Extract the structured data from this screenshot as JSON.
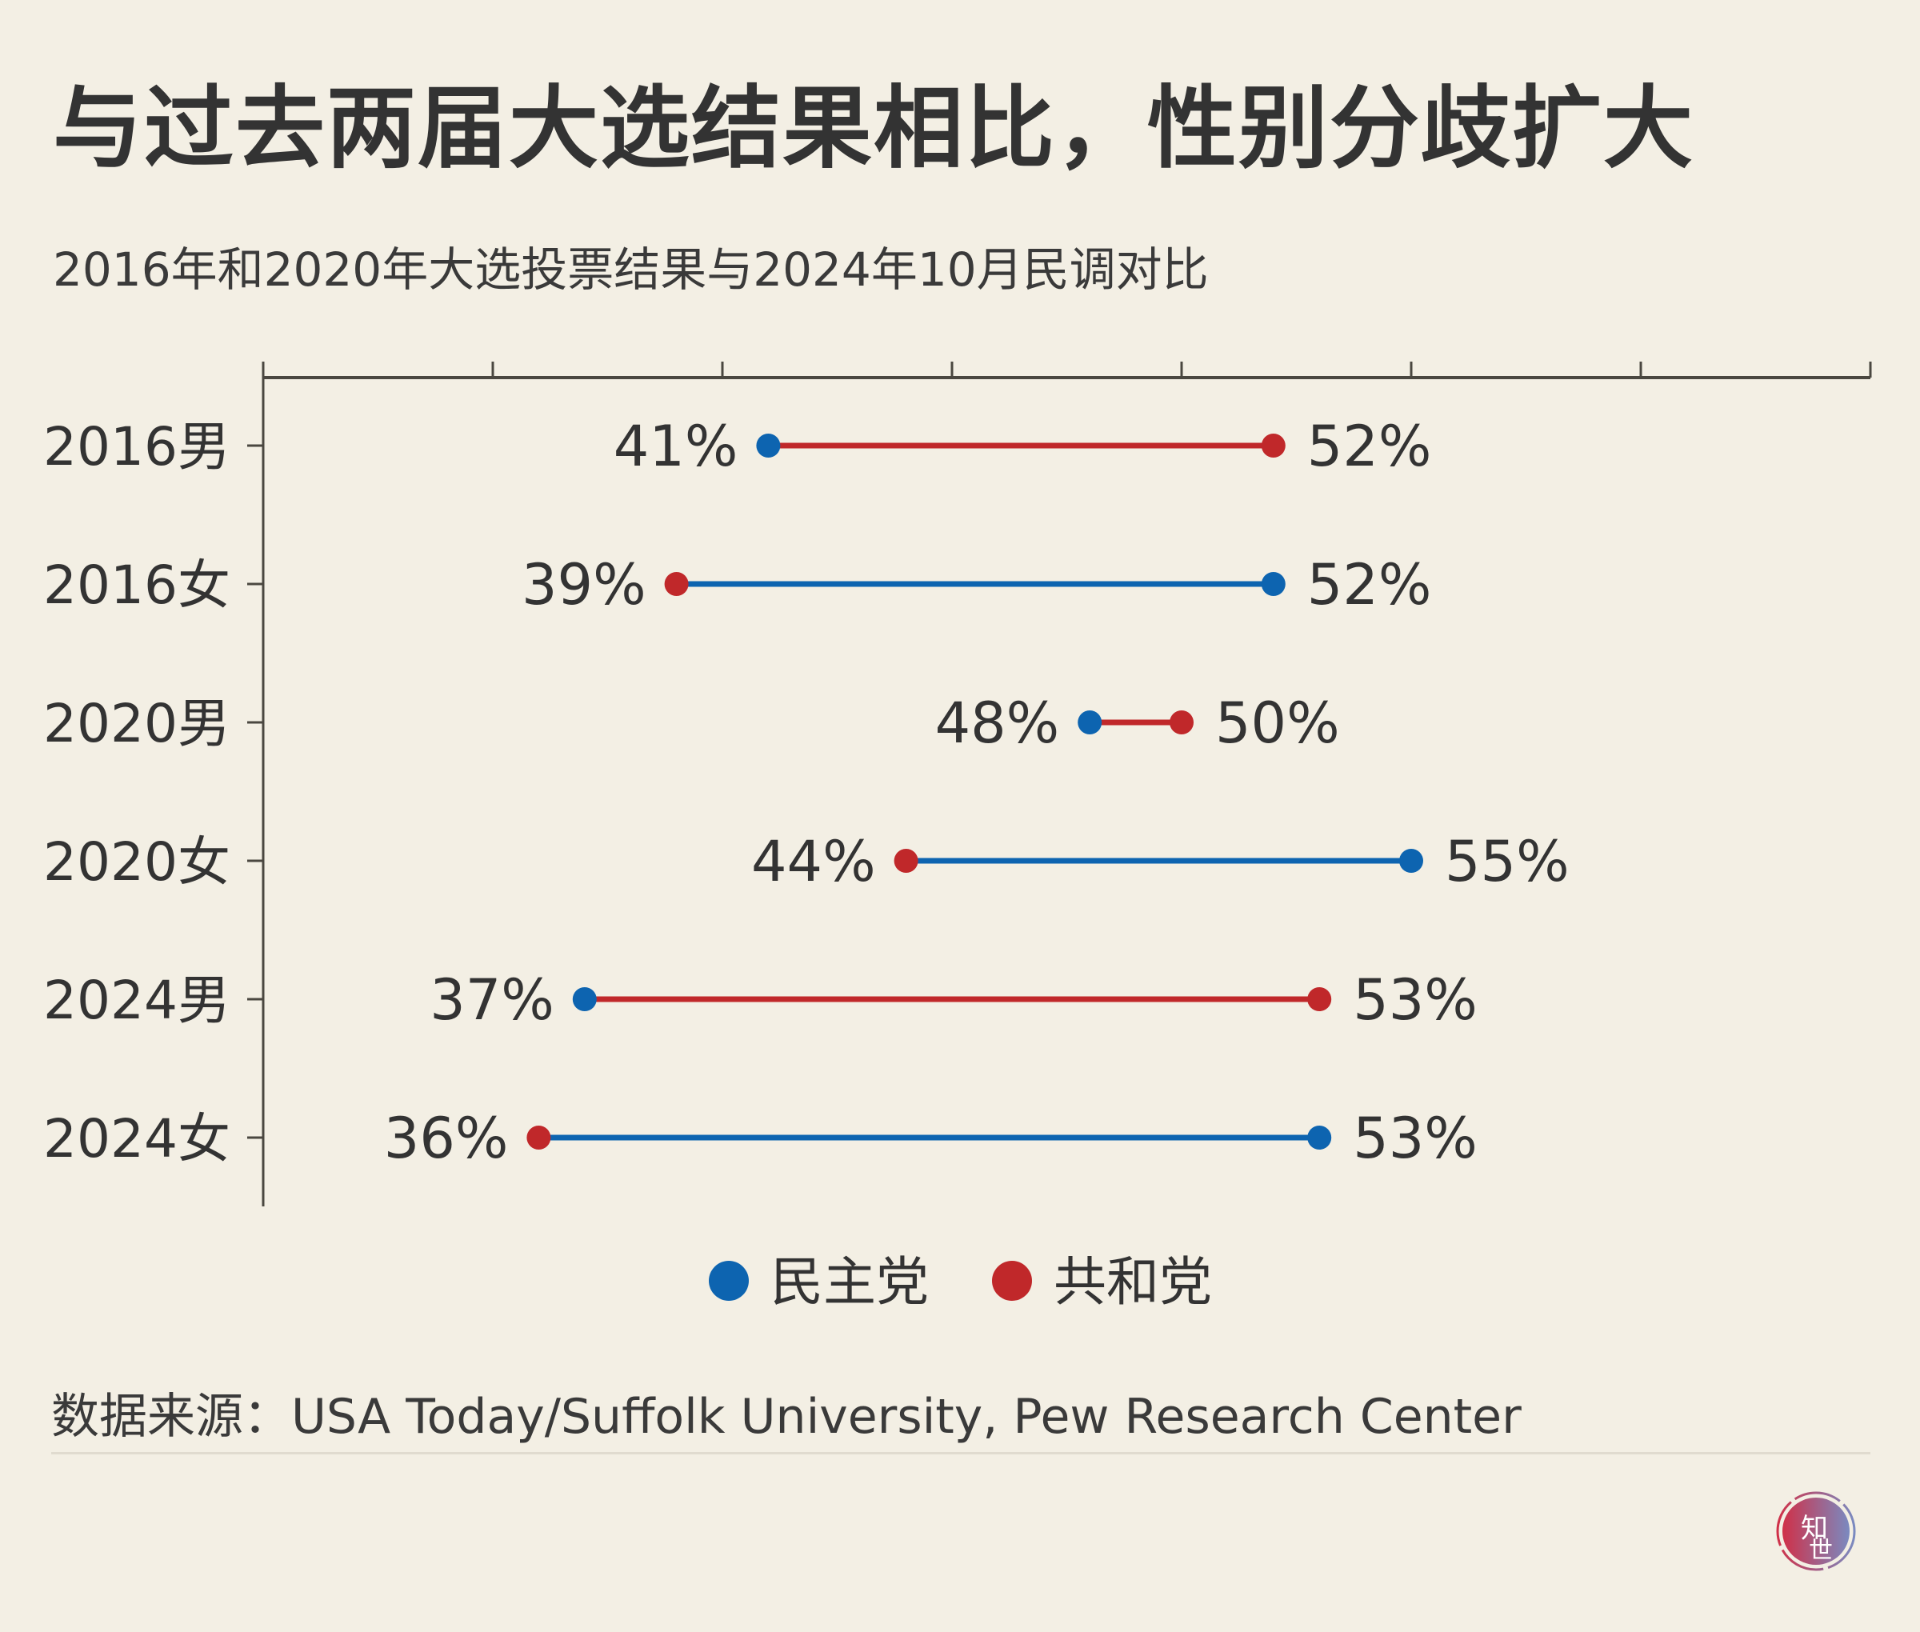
{
  "title": "与过去两届大选结果相比，性别分歧扩大",
  "subtitle": "2016年和2020年大选投票结果与2024年10月民调对比",
  "source": "数据来源：USA Today/Suffolk University, Pew Research Center",
  "logo_text": "知世",
  "colors": {
    "democrat": "#0d64b0",
    "republican": "#c0282a",
    "background": "#f3efe4",
    "axis": "#4a4740"
  },
  "chart_data": {
    "type": "dumbbell",
    "title": "",
    "xlabel": "",
    "ylabel": "",
    "xlim": [
      30,
      65
    ],
    "x_ticks": [
      30,
      35,
      40,
      45,
      50,
      55,
      60,
      65
    ],
    "x_tick_labels_shown": false,
    "grid": false,
    "legend_placement": "bottom",
    "categories": [
      "2016男",
      "2016女",
      "2020男",
      "2020女",
      "2024男",
      "2024女"
    ],
    "series": [
      {
        "name": "民主党",
        "color": "#0d64b0",
        "values": [
          41,
          52,
          48,
          55,
          37,
          53
        ]
      },
      {
        "name": "共和党",
        "color": "#c0282a",
        "values": [
          52,
          39,
          50,
          44,
          53,
          36
        ]
      }
    ],
    "value_labels": [
      [
        "41%",
        "52%"
      ],
      [
        "52%",
        "39%"
      ],
      [
        "48%",
        "50%"
      ],
      [
        "55%",
        "44%"
      ],
      [
        "37%",
        "53%"
      ],
      [
        "53%",
        "36%"
      ]
    ]
  }
}
